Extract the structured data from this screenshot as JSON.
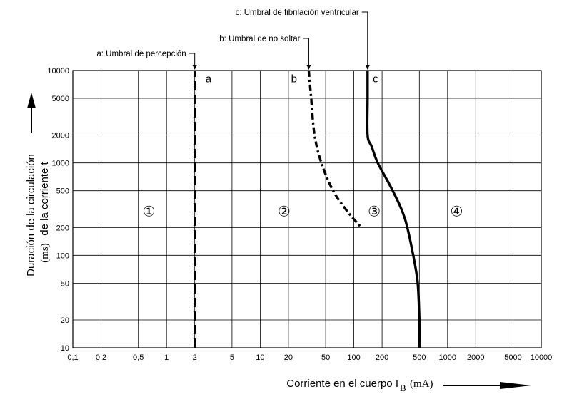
{
  "chart_data": {
    "type": "line",
    "title": "",
    "xlabel": "Corriente en el cuerpo I",
    "xlabel_sub": "B",
    "xlabel_unit": "(mA)",
    "ylabel_line1": "Duración de la circulación",
    "ylabel_line2": "de la corriente  t",
    "ylabel_unit": "(ms)",
    "x_scale": "log",
    "y_scale": "log",
    "xlim": [
      0.1,
      10000
    ],
    "ylim": [
      10,
      10000
    ],
    "grid": true,
    "x_ticks": [
      {
        "value": 0.1,
        "label": "0,1"
      },
      {
        "value": 0.2,
        "label": "0,2"
      },
      {
        "value": 0.5,
        "label": "0,5"
      },
      {
        "value": 1,
        "label": "1"
      },
      {
        "value": 2,
        "label": "2"
      },
      {
        "value": 5,
        "label": "5"
      },
      {
        "value": 10,
        "label": "10"
      },
      {
        "value": 20,
        "label": "20"
      },
      {
        "value": 50,
        "label": "50"
      },
      {
        "value": 100,
        "label": "100"
      },
      {
        "value": 200,
        "label": "200"
      },
      {
        "value": 500,
        "label": "500"
      },
      {
        "value": 1000,
        "label": "1000"
      },
      {
        "value": 2000,
        "label": "2000"
      },
      {
        "value": 5000,
        "label": "5000"
      },
      {
        "value": 10000,
        "label": "10000"
      }
    ],
    "y_ticks": [
      {
        "value": 10,
        "label": "10"
      },
      {
        "value": 20,
        "label": "20"
      },
      {
        "value": 50,
        "label": "50"
      },
      {
        "value": 100,
        "label": "100"
      },
      {
        "value": 200,
        "label": "200"
      },
      {
        "value": 500,
        "label": "500"
      },
      {
        "value": 1000,
        "label": "1000"
      },
      {
        "value": 2000,
        "label": "2000"
      },
      {
        "value": 5000,
        "label": "5000"
      },
      {
        "value": 10000,
        "label": "10000"
      }
    ],
    "series": [
      {
        "name": "a",
        "legend": "a: Umbral de percepción",
        "style": "dashed",
        "points": [
          [
            2,
            10
          ],
          [
            2,
            10000
          ]
        ]
      },
      {
        "name": "b",
        "legend": "b: Umbral de no soltar",
        "style": "dash-dot",
        "points": [
          [
            33,
            10000
          ],
          [
            35,
            5000
          ],
          [
            38,
            2000
          ],
          [
            45,
            1000
          ],
          [
            60,
            500
          ],
          [
            85,
            300
          ],
          [
            120,
            200
          ]
        ]
      },
      {
        "name": "c",
        "legend": "c: Umbral de fibrilación ventricular",
        "style": "solid",
        "points": [
          [
            140,
            10000
          ],
          [
            140,
            5000
          ],
          [
            140,
            2000
          ],
          [
            155,
            1500
          ],
          [
            180,
            1000
          ],
          [
            260,
            500
          ],
          [
            350,
            250
          ],
          [
            430,
            100
          ],
          [
            480,
            50
          ],
          [
            500,
            20
          ],
          [
            500,
            10
          ]
        ]
      }
    ],
    "zones": [
      {
        "label": "①",
        "x": 0.65,
        "y": 300
      },
      {
        "label": "②",
        "x": 18,
        "y": 300
      },
      {
        "label": "③",
        "x": 165,
        "y": 300
      },
      {
        "label": "④",
        "x": 1250,
        "y": 300
      }
    ],
    "curve_letters": [
      {
        "text": "a",
        "x": 2.8,
        "y": 8000
      },
      {
        "text": "b",
        "x": 23,
        "y": 8000
      },
      {
        "text": "c",
        "x": 170,
        "y": 8000
      }
    ]
  }
}
